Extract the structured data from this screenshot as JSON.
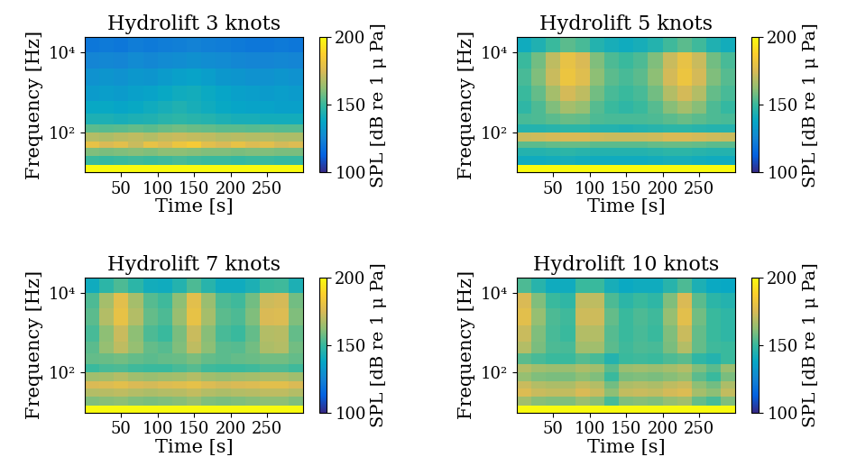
{
  "chart_data": [
    {
      "type": "heatmap",
      "title": "Hydrolift 3 knots",
      "x_label": "Time [s]",
      "y_label": "Frequency [Hz]",
      "x_bins": [
        0,
        20,
        40,
        60,
        80,
        100,
        120,
        140,
        160,
        180,
        200,
        220,
        240,
        260,
        280,
        300
      ],
      "y_bins": [
        10,
        15,
        25,
        40,
        60,
        100,
        160,
        300,
        600,
        1500,
        4000,
        10000,
        24000
      ],
      "cells": [
        [
          200,
          200,
          200,
          200,
          200,
          200,
          200,
          200,
          200,
          200,
          200,
          200,
          200,
          200,
          200
        ],
        [
          150,
          149,
          150,
          151,
          150,
          151,
          152,
          151,
          150,
          150,
          149,
          150,
          150,
          149,
          149
        ],
        [
          160,
          159,
          160,
          161,
          160,
          162,
          162,
          161,
          160,
          160,
          159,
          160,
          160,
          159,
          159
        ],
        [
          180,
          175,
          178,
          172,
          180,
          176,
          182,
          185,
          178,
          175,
          180,
          176,
          178,
          174,
          176
        ],
        [
          168,
          167,
          169,
          170,
          168,
          171,
          172,
          171,
          170,
          168,
          169,
          168,
          168,
          167,
          167
        ],
        [
          155,
          154,
          155,
          156,
          155,
          157,
          158,
          157,
          156,
          155,
          155,
          154,
          155,
          154,
          154
        ],
        [
          143,
          143,
          142,
          143,
          144,
          146,
          147,
          146,
          145,
          143,
          142,
          142,
          141,
          141,
          141
        ],
        [
          138,
          138,
          137,
          138,
          140,
          142,
          144,
          142,
          140,
          138,
          137,
          136,
          136,
          135,
          135
        ],
        [
          133,
          134,
          133,
          135,
          136,
          138,
          140,
          141,
          139,
          137,
          135,
          134,
          133,
          134,
          133
        ],
        [
          130,
          131,
          130,
          132,
          131,
          133,
          135,
          136,
          134,
          132,
          131,
          130,
          130,
          131,
          130
        ],
        [
          125,
          126,
          125,
          127,
          126,
          127,
          128,
          129,
          128,
          127,
          126,
          125,
          125,
          126,
          125
        ],
        [
          120,
          121,
          120,
          122,
          121,
          122,
          123,
          124,
          123,
          122,
          121,
          120,
          120,
          121,
          120
        ]
      ],
      "xlim": [
        0,
        300
      ],
      "ylim": [
        10,
        24000
      ],
      "xticks": [
        50,
        100,
        150,
        200,
        250
      ],
      "yticks": [
        {
          "value": 100,
          "label": "10²"
        },
        {
          "value": 10000,
          "label": "10⁴"
        }
      ],
      "log": "y",
      "colorbar_label": "SPL [dB re 1 μ Pa]",
      "colorbar_range": [
        100,
        200
      ],
      "colorbar_ticks": [
        100,
        150,
        200
      ]
    },
    {
      "type": "heatmap",
      "title": "Hydrolift 5 knots",
      "x_label": "Time [s]",
      "y_label": "Frequency [Hz]",
      "x_bins": [
        0,
        20,
        40,
        60,
        80,
        100,
        120,
        140,
        160,
        180,
        200,
        220,
        240,
        260,
        280,
        300
      ],
      "y_bins": [
        10,
        15,
        25,
        40,
        60,
        100,
        160,
        300,
        600,
        1500,
        4000,
        10000,
        24000
      ],
      "cells": [
        [
          200,
          200,
          200,
          200,
          200,
          200,
          200,
          200,
          200,
          200,
          200,
          200,
          200,
          200,
          200
        ],
        [
          140,
          140,
          141,
          142,
          141,
          140,
          140,
          140,
          140,
          141,
          142,
          142,
          141,
          140,
          140
        ],
        [
          145,
          145,
          146,
          147,
          146,
          145,
          145,
          145,
          145,
          146,
          147,
          147,
          146,
          145,
          145
        ],
        [
          155,
          155,
          156,
          157,
          157,
          155,
          155,
          155,
          155,
          156,
          157,
          157,
          156,
          155,
          155
        ],
        [
          172,
          173,
          174,
          175,
          175,
          173,
          172,
          172,
          172,
          173,
          175,
          175,
          174,
          173,
          172
        ],
        [
          145,
          145,
          146,
          147,
          147,
          145,
          145,
          144,
          145,
          146,
          147,
          147,
          146,
          145,
          145
        ],
        [
          152,
          153,
          155,
          157,
          156,
          153,
          152,
          152,
          152,
          153,
          155,
          157,
          155,
          153,
          152
        ],
        [
          148,
          153,
          160,
          166,
          163,
          154,
          150,
          148,
          150,
          154,
          161,
          166,
          161,
          153,
          149
        ],
        [
          150,
          156,
          166,
          174,
          170,
          158,
          152,
          150,
          152,
          158,
          168,
          174,
          168,
          156,
          152
        ],
        [
          152,
          160,
          172,
          182,
          177,
          162,
          155,
          152,
          155,
          162,
          174,
          182,
          174,
          160,
          154
        ],
        [
          150,
          158,
          170,
          180,
          175,
          160,
          153,
          150,
          153,
          160,
          172,
          180,
          172,
          158,
          152
        ],
        [
          140,
          144,
          150,
          155,
          152,
          145,
          142,
          140,
          142,
          145,
          151,
          155,
          151,
          144,
          141
        ]
      ],
      "xlim": [
        0,
        300
      ],
      "ylim": [
        10,
        24000
      ],
      "xticks": [
        50,
        100,
        150,
        200,
        250
      ],
      "yticks": [
        {
          "value": 100,
          "label": "10²"
        },
        {
          "value": 10000,
          "label": "10⁴"
        }
      ],
      "log": "y",
      "colorbar_label": "SPL [dB re 1 μ Pa]",
      "colorbar_range": [
        100,
        200
      ],
      "colorbar_ticks": [
        100,
        150,
        200
      ]
    },
    {
      "type": "heatmap",
      "title": "Hydrolift 7 knots",
      "x_label": "Time [s]",
      "y_label": "Frequency [Hz]",
      "x_bins": [
        0,
        20,
        40,
        60,
        80,
        100,
        120,
        140,
        160,
        180,
        200,
        220,
        240,
        260,
        280,
        300
      ],
      "y_bins": [
        10,
        15,
        25,
        40,
        60,
        100,
        160,
        300,
        600,
        1500,
        4000,
        10000,
        24000
      ],
      "cells": [
        [
          200,
          200,
          200,
          200,
          200,
          200,
          200,
          200,
          200,
          200,
          200,
          200,
          200,
          200,
          200
        ],
        [
          160,
          161,
          162,
          160,
          159,
          160,
          161,
          163,
          160,
          159,
          160,
          161,
          162,
          162,
          160
        ],
        [
          168,
          169,
          170,
          168,
          167,
          168,
          169,
          171,
          168,
          167,
          168,
          169,
          170,
          170,
          168
        ],
        [
          175,
          176,
          178,
          175,
          174,
          176,
          177,
          179,
          176,
          174,
          175,
          176,
          178,
          178,
          175
        ],
        [
          165,
          166,
          168,
          165,
          164,
          165,
          166,
          168,
          165,
          164,
          165,
          166,
          167,
          167,
          165
        ],
        [
          150,
          152,
          153,
          151,
          150,
          150,
          152,
          154,
          151,
          150,
          150,
          151,
          153,
          153,
          151
        ],
        [
          156,
          157,
          158,
          156,
          155,
          156,
          157,
          159,
          156,
          155,
          156,
          157,
          158,
          158,
          156
        ],
        [
          155,
          163,
          170,
          163,
          156,
          154,
          160,
          170,
          162,
          155,
          154,
          158,
          167,
          168,
          158
        ],
        [
          152,
          162,
          172,
          162,
          153,
          150,
          159,
          172,
          161,
          152,
          150,
          156,
          168,
          169,
          156
        ],
        [
          155,
          168,
          180,
          168,
          156,
          153,
          164,
          180,
          166,
          155,
          153,
          160,
          175,
          176,
          160
        ],
        [
          153,
          166,
          178,
          166,
          154,
          151,
          162,
          178,
          164,
          153,
          151,
          158,
          173,
          174,
          158
        ],
        [
          140,
          147,
          153,
          147,
          141,
          140,
          145,
          153,
          146,
          140,
          140,
          143,
          150,
          151,
          143
        ]
      ],
      "xlim": [
        0,
        300
      ],
      "ylim": [
        10,
        24000
      ],
      "xticks": [
        50,
        100,
        150,
        200,
        250
      ],
      "yticks": [
        {
          "value": 100,
          "label": "10²"
        },
        {
          "value": 10000,
          "label": "10⁴"
        }
      ],
      "log": "y",
      "colorbar_label": "SPL [dB re 1 μ Pa]",
      "colorbar_range": [
        100,
        200
      ],
      "colorbar_ticks": [
        100,
        150,
        200
      ]
    },
    {
      "type": "heatmap",
      "title": "Hydrolift 10 knots",
      "x_label": "Time [s]",
      "y_label": "Frequency [Hz]",
      "x_bins": [
        0,
        20,
        40,
        60,
        80,
        100,
        120,
        140,
        160,
        180,
        200,
        220,
        240,
        260,
        280,
        300
      ],
      "y_bins": [
        10,
        15,
        25,
        40,
        60,
        100,
        160,
        300,
        600,
        1500,
        4000,
        10000,
        24000
      ],
      "cells": [
        [
          200,
          200,
          200,
          200,
          200,
          200,
          200,
          200,
          200,
          200,
          200,
          200,
          200,
          200,
          200
        ],
        [
          165,
          161,
          160,
          160,
          164,
          161,
          152,
          160,
          161,
          160,
          163,
          165,
          156,
          152,
          160
        ],
        [
          176,
          172,
          171,
          171,
          175,
          172,
          162,
          171,
          172,
          171,
          174,
          176,
          166,
          162,
          171
        ],
        [
          172,
          168,
          167,
          167,
          171,
          168,
          158,
          167,
          168,
          167,
          170,
          172,
          162,
          158,
          167
        ],
        [
          163,
          160,
          159,
          159,
          162,
          160,
          150,
          159,
          160,
          159,
          161,
          163,
          155,
          150,
          159
        ],
        [
          168,
          165,
          164,
          164,
          167,
          165,
          155,
          164,
          165,
          164,
          166,
          168,
          160,
          155,
          164
        ],
        [
          155,
          152,
          150,
          150,
          154,
          152,
          145,
          150,
          151,
          150,
          153,
          155,
          148,
          145,
          150
        ],
        [
          168,
          159,
          153,
          152,
          165,
          165,
          155,
          151,
          153,
          152,
          159,
          168,
          156,
          151,
          150
        ],
        [
          172,
          160,
          152,
          150,
          168,
          168,
          154,
          150,
          152,
          150,
          160,
          172,
          156,
          150,
          148
        ],
        [
          178,
          163,
          153,
          151,
          173,
          173,
          156,
          150,
          153,
          151,
          163,
          178,
          158,
          150,
          148
        ],
        [
          175,
          160,
          150,
          148,
          170,
          170,
          153,
          147,
          150,
          148,
          160,
          175,
          155,
          147,
          145
        ],
        [
          153,
          146,
          140,
          140,
          150,
          150,
          142,
          139,
          140,
          140,
          146,
          153,
          143,
          139,
          138
        ]
      ],
      "xlim": [
        0,
        300
      ],
      "ylim": [
        10,
        24000
      ],
      "xticks": [
        50,
        100,
        150,
        200,
        250
      ],
      "yticks": [
        {
          "value": 100,
          "label": "10²"
        },
        {
          "value": 10000,
          "label": "10⁴"
        }
      ],
      "log": "y",
      "colorbar_label": "SPL [dB re 1 μ Pa]",
      "colorbar_range": [
        100,
        200
      ],
      "colorbar_ticks": [
        100,
        150,
        200
      ]
    }
  ]
}
